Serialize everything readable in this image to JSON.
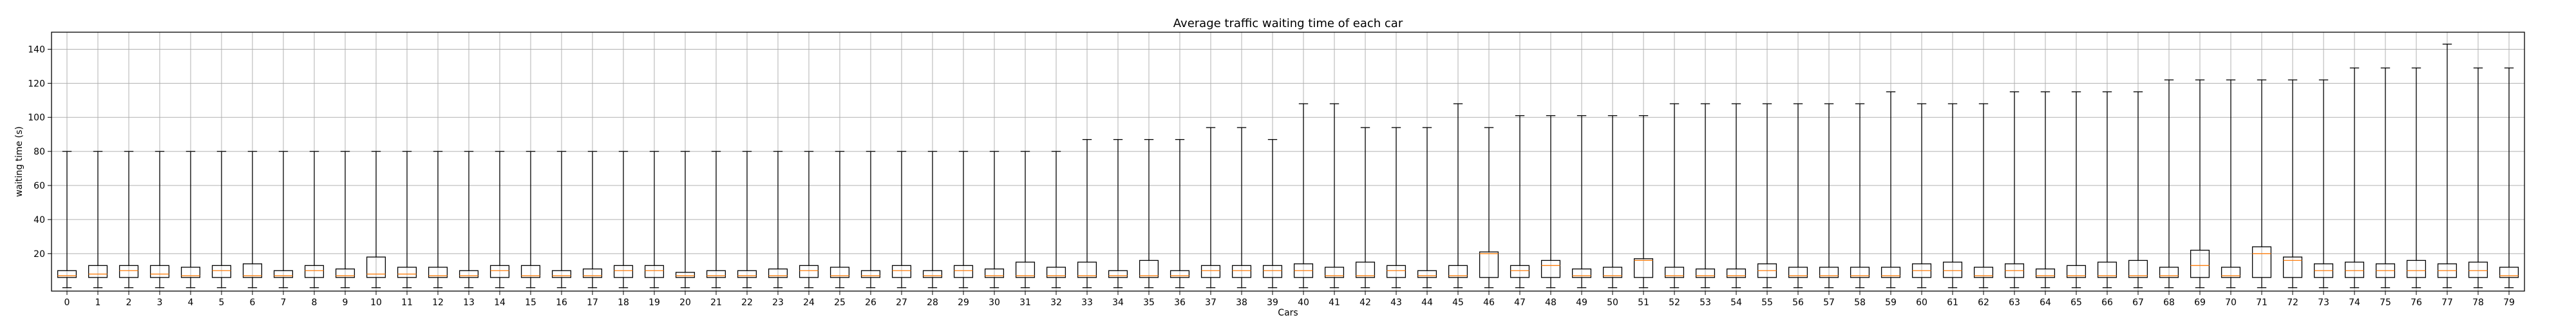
{
  "chart_data": {
    "type": "boxplot",
    "title": "Average traffic waiting time of each car",
    "xlabel": "Cars",
    "ylabel": "waiting time (s)",
    "ylim": [
      -2,
      150
    ],
    "yticks": [
      20,
      40,
      60,
      80,
      100,
      120,
      140
    ],
    "grid": true,
    "colors": {
      "box": "#000000",
      "whisker": "#000000",
      "median": "#ff7f0e",
      "grid": "#b0b0b0"
    },
    "categories": [
      "0",
      "1",
      "2",
      "3",
      "4",
      "5",
      "6",
      "7",
      "8",
      "9",
      "10",
      "11",
      "12",
      "13",
      "14",
      "15",
      "16",
      "17",
      "18",
      "19",
      "20",
      "21",
      "22",
      "23",
      "24",
      "25",
      "26",
      "27",
      "28",
      "29",
      "30",
      "31",
      "32",
      "33",
      "34",
      "35",
      "36",
      "37",
      "38",
      "39",
      "40",
      "41",
      "42",
      "43",
      "44",
      "45",
      "46",
      "47",
      "48",
      "49",
      "50",
      "51",
      "52",
      "53",
      "54",
      "55",
      "56",
      "57",
      "58",
      "59",
      "60",
      "61",
      "62",
      "63",
      "64",
      "65",
      "66",
      "67",
      "68",
      "69",
      "70",
      "71",
      "72",
      "73",
      "74",
      "75",
      "76",
      "77",
      "78",
      "79"
    ],
    "boxes": [
      {
        "whislo": 0,
        "q1": 6,
        "med": 7,
        "q3": 10,
        "whishi": 80
      },
      {
        "whislo": 0,
        "q1": 6,
        "med": 8,
        "q3": 13,
        "whishi": 80
      },
      {
        "whislo": 0,
        "q1": 6,
        "med": 10,
        "q3": 13,
        "whishi": 80
      },
      {
        "whislo": 0,
        "q1": 6,
        "med": 8,
        "q3": 13,
        "whishi": 80
      },
      {
        "whislo": 0,
        "q1": 6,
        "med": 7,
        "q3": 12,
        "whishi": 80
      },
      {
        "whislo": 0,
        "q1": 6,
        "med": 10,
        "q3": 13,
        "whishi": 80
      },
      {
        "whislo": 0,
        "q1": 6,
        "med": 7,
        "q3": 14,
        "whishi": 80
      },
      {
        "whislo": 0,
        "q1": 6,
        "med": 7,
        "q3": 10,
        "whishi": 80
      },
      {
        "whislo": 0,
        "q1": 6,
        "med": 10,
        "q3": 13,
        "whishi": 80
      },
      {
        "whislo": 0,
        "q1": 6,
        "med": 7,
        "q3": 11,
        "whishi": 80
      },
      {
        "whislo": 0,
        "q1": 6,
        "med": 8,
        "q3": 18,
        "whishi": 80
      },
      {
        "whislo": 0,
        "q1": 6,
        "med": 8,
        "q3": 12,
        "whishi": 80
      },
      {
        "whislo": 0,
        "q1": 6,
        "med": 7,
        "q3": 12,
        "whishi": 80
      },
      {
        "whislo": 0,
        "q1": 6,
        "med": 7,
        "q3": 10,
        "whishi": 80
      },
      {
        "whislo": 0,
        "q1": 6,
        "med": 10,
        "q3": 13,
        "whishi": 80
      },
      {
        "whislo": 0,
        "q1": 6,
        "med": 7,
        "q3": 13,
        "whishi": 80
      },
      {
        "whislo": 0,
        "q1": 6,
        "med": 7,
        "q3": 10,
        "whishi": 80
      },
      {
        "whislo": 0,
        "q1": 6,
        "med": 7,
        "q3": 11,
        "whishi": 80
      },
      {
        "whislo": 0,
        "q1": 6,
        "med": 10,
        "q3": 13,
        "whishi": 80
      },
      {
        "whislo": 0,
        "q1": 6,
        "med": 10,
        "q3": 13,
        "whishi": 80
      },
      {
        "whislo": 0,
        "q1": 6,
        "med": 7,
        "q3": 9,
        "whishi": 80
      },
      {
        "whislo": 0,
        "q1": 6,
        "med": 7,
        "q3": 10,
        "whishi": 80
      },
      {
        "whislo": 0,
        "q1": 6,
        "med": 7,
        "q3": 10,
        "whishi": 80
      },
      {
        "whislo": 0,
        "q1": 6,
        "med": 7,
        "q3": 11,
        "whishi": 80
      },
      {
        "whislo": 0,
        "q1": 6,
        "med": 10,
        "q3": 13,
        "whishi": 80
      },
      {
        "whislo": 0,
        "q1": 6,
        "med": 7,
        "q3": 12,
        "whishi": 80
      },
      {
        "whislo": 0,
        "q1": 6,
        "med": 7,
        "q3": 10,
        "whishi": 80
      },
      {
        "whislo": 0,
        "q1": 6,
        "med": 10,
        "q3": 13,
        "whishi": 80
      },
      {
        "whislo": 0,
        "q1": 6,
        "med": 7,
        "q3": 10,
        "whishi": 80
      },
      {
        "whislo": 0,
        "q1": 6,
        "med": 10,
        "q3": 13,
        "whishi": 80
      },
      {
        "whislo": 0,
        "q1": 6,
        "med": 7,
        "q3": 11,
        "whishi": 80
      },
      {
        "whislo": 0,
        "q1": 6,
        "med": 7,
        "q3": 15,
        "whishi": 80
      },
      {
        "whislo": 0,
        "q1": 6,
        "med": 7,
        "q3": 12,
        "whishi": 80
      },
      {
        "whislo": 0,
        "q1": 6,
        "med": 7,
        "q3": 15,
        "whishi": 87
      },
      {
        "whislo": 0,
        "q1": 6,
        "med": 7,
        "q3": 10,
        "whishi": 87
      },
      {
        "whislo": 0,
        "q1": 6,
        "med": 7,
        "q3": 16,
        "whishi": 87
      },
      {
        "whislo": 0,
        "q1": 6,
        "med": 7,
        "q3": 10,
        "whishi": 87
      },
      {
        "whislo": 0,
        "q1": 6,
        "med": 10,
        "q3": 13,
        "whishi": 94
      },
      {
        "whislo": 0,
        "q1": 6,
        "med": 10,
        "q3": 13,
        "whishi": 94
      },
      {
        "whislo": 0,
        "q1": 6,
        "med": 10,
        "q3": 13,
        "whishi": 87
      },
      {
        "whislo": 0,
        "q1": 6,
        "med": 10,
        "q3": 14,
        "whishi": 108
      },
      {
        "whislo": 0,
        "q1": 6,
        "med": 7,
        "q3": 12,
        "whishi": 108
      },
      {
        "whislo": 0,
        "q1": 6,
        "med": 7,
        "q3": 15,
        "whishi": 94
      },
      {
        "whislo": 0,
        "q1": 6,
        "med": 10,
        "q3": 13,
        "whishi": 94
      },
      {
        "whislo": 0,
        "q1": 6,
        "med": 7,
        "q3": 10,
        "whishi": 94
      },
      {
        "whislo": 0,
        "q1": 6,
        "med": 7,
        "q3": 13,
        "whishi": 108
      },
      {
        "whislo": 0,
        "q1": 6,
        "med": 20,
        "q3": 21,
        "whishi": 94
      },
      {
        "whislo": 0,
        "q1": 6,
        "med": 10,
        "q3": 13,
        "whishi": 101
      },
      {
        "whislo": 0,
        "q1": 6,
        "med": 13,
        "q3": 16,
        "whishi": 101
      },
      {
        "whislo": 0,
        "q1": 6,
        "med": 7,
        "q3": 11,
        "whishi": 101
      },
      {
        "whislo": 0,
        "q1": 6,
        "med": 7,
        "q3": 12,
        "whishi": 101
      },
      {
        "whislo": 0,
        "q1": 6,
        "med": 16,
        "q3": 17,
        "whishi": 101
      },
      {
        "whislo": 0,
        "q1": 6,
        "med": 7,
        "q3": 12,
        "whishi": 108
      },
      {
        "whislo": 0,
        "q1": 6,
        "med": 7,
        "q3": 11,
        "whishi": 108
      },
      {
        "whislo": 0,
        "q1": 6,
        "med": 7,
        "q3": 11,
        "whishi": 108
      },
      {
        "whislo": 0,
        "q1": 6,
        "med": 10,
        "q3": 14,
        "whishi": 108
      },
      {
        "whislo": 0,
        "q1": 6,
        "med": 7,
        "q3": 12,
        "whishi": 108
      },
      {
        "whislo": 0,
        "q1": 6,
        "med": 7,
        "q3": 12,
        "whishi": 108
      },
      {
        "whislo": 0,
        "q1": 6,
        "med": 7,
        "q3": 12,
        "whishi": 108
      },
      {
        "whislo": 0,
        "q1": 6,
        "med": 7,
        "q3": 12,
        "whishi": 115
      },
      {
        "whislo": 0,
        "q1": 6,
        "med": 10,
        "q3": 14,
        "whishi": 108
      },
      {
        "whislo": 0,
        "q1": 6,
        "med": 10,
        "q3": 15,
        "whishi": 108
      },
      {
        "whislo": 0,
        "q1": 6,
        "med": 7,
        "q3": 12,
        "whishi": 108
      },
      {
        "whislo": 0,
        "q1": 6,
        "med": 10,
        "q3": 14,
        "whishi": 115
      },
      {
        "whislo": 0,
        "q1": 6,
        "med": 7,
        "q3": 11,
        "whishi": 115
      },
      {
        "whislo": 0,
        "q1": 6,
        "med": 7,
        "q3": 13,
        "whishi": 115
      },
      {
        "whislo": 0,
        "q1": 6,
        "med": 7,
        "q3": 15,
        "whishi": 115
      },
      {
        "whislo": 0,
        "q1": 6,
        "med": 7,
        "q3": 16,
        "whishi": 115
      },
      {
        "whislo": 0,
        "q1": 6,
        "med": 7,
        "q3": 12,
        "whishi": 122
      },
      {
        "whislo": 0,
        "q1": 6,
        "med": 13,
        "q3": 22,
        "whishi": 122
      },
      {
        "whislo": 0,
        "q1": 6,
        "med": 7,
        "q3": 12,
        "whishi": 122
      },
      {
        "whislo": 0,
        "q1": 6,
        "med": 20,
        "q3": 24,
        "whishi": 122
      },
      {
        "whislo": 0,
        "q1": 6,
        "med": 16,
        "q3": 18,
        "whishi": 122
      },
      {
        "whislo": 0,
        "q1": 6,
        "med": 10,
        "q3": 14,
        "whishi": 122
      },
      {
        "whislo": 0,
        "q1": 6,
        "med": 10,
        "q3": 15,
        "whishi": 129
      },
      {
        "whislo": 0,
        "q1": 6,
        "med": 10,
        "q3": 14,
        "whishi": 129
      },
      {
        "whislo": 0,
        "q1": 6,
        "med": 10,
        "q3": 16,
        "whishi": 129
      },
      {
        "whislo": 0,
        "q1": 6,
        "med": 10,
        "q3": 14,
        "whishi": 143
      },
      {
        "whislo": 0,
        "q1": 6,
        "med": 10,
        "q3": 15,
        "whishi": 129
      },
      {
        "whislo": 0,
        "q1": 6,
        "med": 7,
        "q3": 12,
        "whishi": 129
      }
    ]
  }
}
